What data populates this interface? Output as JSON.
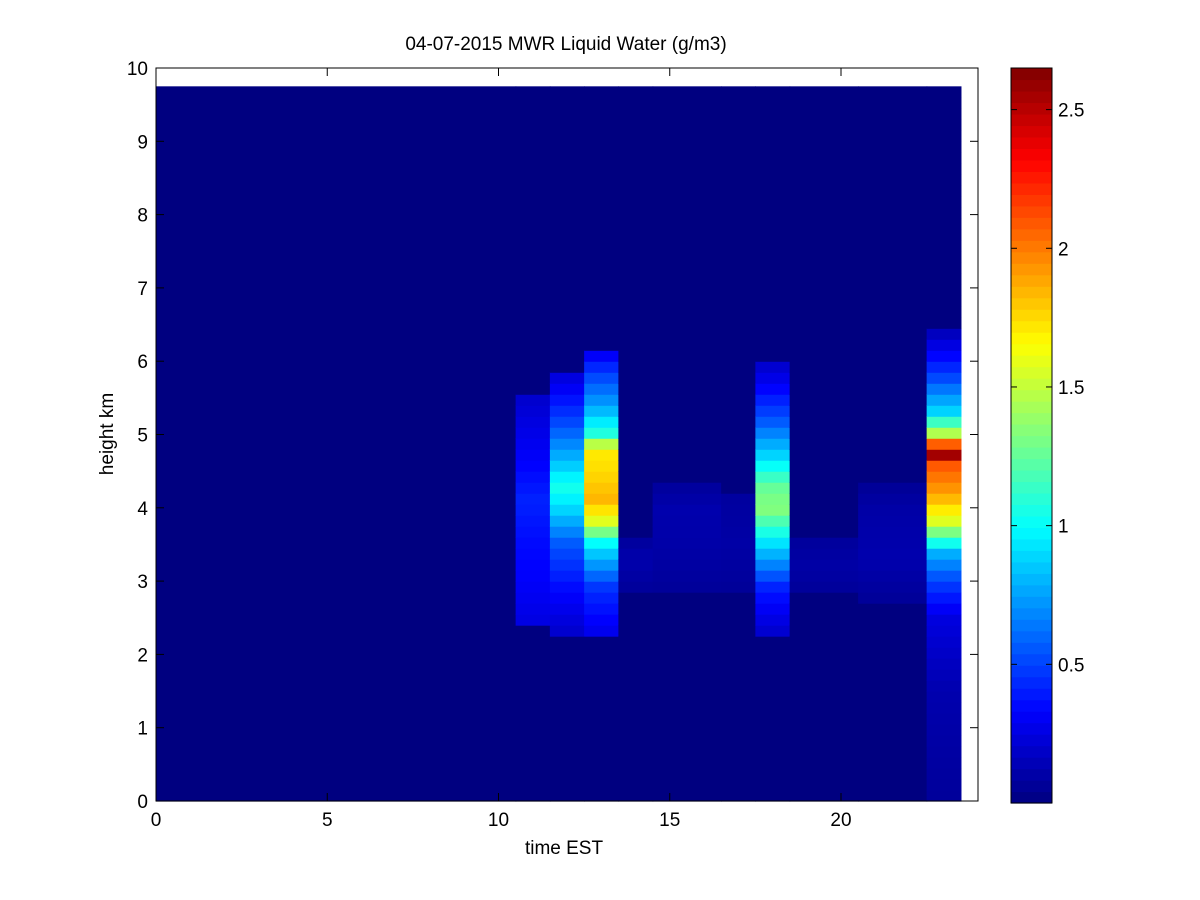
{
  "chart_data": {
    "type": "heatmap",
    "title": "04-07-2015 MWR Liquid Water (g/m3)",
    "xlabel": "time EST",
    "ylabel": "height km",
    "xlim": [
      0,
      24
    ],
    "ylim": [
      0,
      10
    ],
    "x_ticks": [
      0,
      5,
      10,
      15,
      20
    ],
    "y_ticks": [
      0,
      1,
      2,
      3,
      4,
      5,
      6,
      7,
      8,
      9,
      10
    ],
    "x_tick_labels": [
      "0",
      "5",
      "10",
      "15",
      "20"
    ],
    "y_tick_labels": [
      "0",
      "1",
      "2",
      "3",
      "4",
      "5",
      "6",
      "7",
      "8",
      "9",
      "10"
    ],
    "colormap": "jet",
    "color_range": [
      0,
      2.65
    ],
    "colorbar_ticks": [
      0.5,
      1,
      1.5,
      2,
      2.5
    ],
    "colorbar_tick_labels": [
      "0.5",
      "1",
      "1.5",
      "2",
      "2.5"
    ],
    "data_extent": {
      "x": [
        0,
        23.5
      ],
      "y": [
        0,
        9.75
      ]
    },
    "columns": [
      {
        "x0": 0,
        "x1": 10.5,
        "profile": []
      },
      {
        "x0": 10.5,
        "x1": 11.5,
        "profile": [
          [
            2.4,
            0.25
          ],
          [
            3.0,
            0.32
          ],
          [
            3.6,
            0.36
          ],
          [
            4.1,
            0.42
          ],
          [
            4.6,
            0.33
          ],
          [
            5.1,
            0.26
          ],
          [
            5.6,
            0.19
          ]
        ]
      },
      {
        "x0": 11.5,
        "x1": 12.5,
        "profile": [
          [
            2.3,
            0.2
          ],
          [
            2.9,
            0.35
          ],
          [
            3.5,
            0.55
          ],
          [
            4.0,
            0.9
          ],
          [
            4.3,
            1.05
          ],
          [
            4.6,
            0.85
          ],
          [
            5.1,
            0.55
          ],
          [
            5.6,
            0.32
          ],
          [
            5.9,
            0.2
          ]
        ]
      },
      {
        "x0": 12.5,
        "x1": 13.5,
        "profile": [
          [
            2.3,
            0.28
          ],
          [
            2.9,
            0.45
          ],
          [
            3.5,
            0.95
          ],
          [
            3.8,
            1.55
          ],
          [
            4.1,
            1.85
          ],
          [
            4.5,
            1.75
          ],
          [
            4.8,
            1.7
          ],
          [
            5.0,
            1.1
          ],
          [
            5.4,
            0.75
          ],
          [
            5.9,
            0.45
          ],
          [
            6.2,
            0.22
          ]
        ]
      },
      {
        "x0": 13.5,
        "x1": 14.5,
        "profile": [
          [
            2.8,
            0.06
          ],
          [
            3.3,
            0.12
          ],
          [
            3.6,
            0.07
          ]
        ]
      },
      {
        "x0": 14.5,
        "x1": 16.5,
        "profile": [
          [
            2.8,
            0.06
          ],
          [
            3.4,
            0.1
          ],
          [
            4.0,
            0.12
          ],
          [
            4.4,
            0.06
          ]
        ]
      },
      {
        "x0": 16.5,
        "x1": 17.5,
        "profile": [
          [
            2.8,
            0.06
          ],
          [
            3.5,
            0.1
          ],
          [
            4.2,
            0.08
          ]
        ]
      },
      {
        "x0": 17.5,
        "x1": 18.5,
        "profile": [
          [
            2.3,
            0.2
          ],
          [
            2.9,
            0.4
          ],
          [
            3.5,
            0.9
          ],
          [
            4.0,
            1.35
          ],
          [
            4.3,
            1.25
          ],
          [
            4.7,
            0.9
          ],
          [
            5.2,
            0.55
          ],
          [
            5.7,
            0.3
          ],
          [
            6.0,
            0.18
          ]
        ]
      },
      {
        "x0": 18.5,
        "x1": 20.5,
        "profile": [
          [
            2.8,
            0.06
          ],
          [
            3.2,
            0.1
          ],
          [
            3.6,
            0.07
          ]
        ]
      },
      {
        "x0": 20.5,
        "x1": 22.5,
        "profile": [
          [
            2.7,
            0.06
          ],
          [
            3.3,
            0.12
          ],
          [
            4.0,
            0.1
          ],
          [
            4.3,
            0.06
          ]
        ]
      },
      {
        "x0": 22.5,
        "x1": 23.5,
        "profile": [
          [
            0.0,
            0.07
          ],
          [
            1.5,
            0.12
          ],
          [
            2.5,
            0.25
          ],
          [
            3.0,
            0.5
          ],
          [
            3.4,
            0.8
          ],
          [
            3.8,
            1.55
          ],
          [
            4.2,
            1.9
          ],
          [
            4.6,
            2.1
          ],
          [
            4.75,
            2.65
          ],
          [
            5.0,
            1.5
          ],
          [
            5.3,
            0.9
          ],
          [
            5.8,
            0.5
          ],
          [
            6.4,
            0.15
          ]
        ]
      }
    ]
  }
}
